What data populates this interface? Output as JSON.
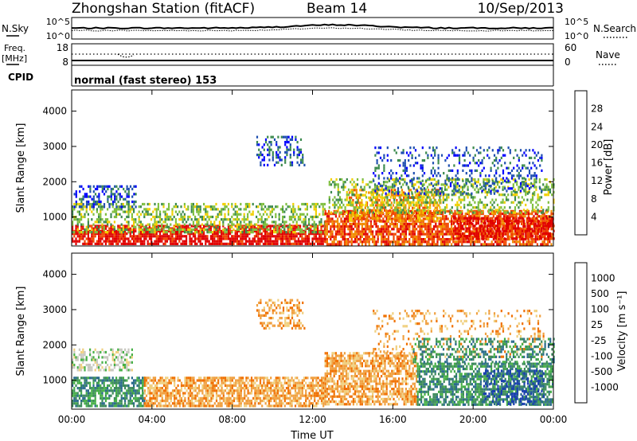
{
  "header": {
    "station": "Zhongshan Station (fitACF)",
    "beam": "Beam 14",
    "date": "10/Sep/2013"
  },
  "strips": {
    "nsky": {
      "label": "N.Sky",
      "ticks": [
        "10^5",
        "10^0"
      ]
    },
    "nsearch": {
      "label": "N.Search",
      "ticks": [
        "10^5",
        "10^0"
      ]
    },
    "freq": {
      "label_line1": "Freq.",
      "label_line2": "[MHz]",
      "ticks": [
        "18",
        "8"
      ]
    },
    "nave": {
      "label": "Nave",
      "ticks": [
        "60",
        "0"
      ]
    },
    "cpid": {
      "label": "CPID",
      "value": "normal (fast stereo) 153"
    }
  },
  "chart_data": [
    {
      "type": "heatmap",
      "quantity": "power",
      "ylabel": "Slant Range [km]",
      "xlabel": "",
      "x_ticks": [
        "00:00",
        "04:00",
        "08:00",
        "12:00",
        "16:00",
        "20:00",
        "00:00"
      ],
      "xlim_hours": [
        0,
        24
      ],
      "y_ticks": [
        1000,
        2000,
        3000,
        4000
      ],
      "ylim": [
        180,
        4600
      ],
      "colorbar": {
        "label": "Power [dB]",
        "ticks": [
          "4",
          "8",
          "12",
          "16",
          "20",
          "24",
          "28"
        ],
        "colors": [
          "#0000ff",
          "#1f4fb0",
          "#3c8a4e",
          "#7fbf3f",
          "#f0d000",
          "#f08c00",
          "#f04800",
          "#e00000"
        ]
      },
      "regions": [
        {
          "x0": 0.0,
          "x1": 12.6,
          "y0": 250,
          "y1": 780,
          "level": 7,
          "density": 0.78
        },
        {
          "x0": 0.0,
          "x1": 12.6,
          "y0": 600,
          "y1": 1400,
          "level": 3,
          "density": 0.45
        },
        {
          "x0": 0.1,
          "x1": 3.2,
          "y0": 1300,
          "y1": 1900,
          "level": 1,
          "density": 0.45
        },
        {
          "x0": 9.2,
          "x1": 11.6,
          "y0": 2500,
          "y1": 3300,
          "level": 1,
          "density": 0.35
        },
        {
          "x0": 12.6,
          "x1": 24.0,
          "y0": 250,
          "y1": 1200,
          "level": 6,
          "density": 0.75
        },
        {
          "x0": 13.8,
          "x1": 18.4,
          "y0": 900,
          "y1": 1800,
          "level": 5,
          "density": 0.55
        },
        {
          "x0": 12.8,
          "x1": 24.0,
          "y0": 1100,
          "y1": 2100,
          "level": 3,
          "density": 0.4
        },
        {
          "x0": 15.0,
          "x1": 23.5,
          "y0": 1700,
          "y1": 3000,
          "level": 1,
          "density": 0.22
        },
        {
          "x0": 19.0,
          "x1": 24.0,
          "y0": 400,
          "y1": 1000,
          "level": 7,
          "density": 0.6
        }
      ]
    },
    {
      "type": "heatmap",
      "quantity": "velocity",
      "ylabel": "Slant Range [km]",
      "xlabel": "Time UT",
      "x_ticks": [
        "00:00",
        "04:00",
        "08:00",
        "12:00",
        "16:00",
        "20:00",
        "00:00"
      ],
      "xlim_hours": [
        0,
        24
      ],
      "y_ticks": [
        1000,
        2000,
        3000,
        4000
      ],
      "ylim": [
        180,
        4600
      ],
      "colorbar": {
        "label": "Velocity [m s⁻¹]",
        "ticks": [
          "1000",
          "500",
          "100",
          "25",
          "-25",
          "-100",
          "-500",
          "-1000"
        ],
        "colors": [
          "#1a3fb0",
          "#2a6a8c",
          "#3c8a5c",
          "#46b046",
          "#c8c8c0",
          "#f0d080",
          "#f0a040",
          "#f07000",
          "#e00000"
        ]
      },
      "regions": [
        {
          "x0": 0.0,
          "x1": 3.6,
          "y0": 250,
          "y1": 1100,
          "level": 2,
          "density": 0.72
        },
        {
          "x0": 3.6,
          "x1": 12.6,
          "y0": 250,
          "y1": 1100,
          "level": 6,
          "density": 0.72
        },
        {
          "x0": 0.0,
          "x1": 3.0,
          "y0": 1300,
          "y1": 1900,
          "level": 4,
          "density": 0.45
        },
        {
          "x0": 9.2,
          "x1": 11.6,
          "y0": 2500,
          "y1": 3300,
          "level": 6,
          "density": 0.35
        },
        {
          "x0": 12.6,
          "x1": 17.2,
          "y0": 300,
          "y1": 1800,
          "level": 6,
          "density": 0.68
        },
        {
          "x0": 17.2,
          "x1": 24.0,
          "y0": 300,
          "y1": 1500,
          "level": 2,
          "density": 0.68
        },
        {
          "x0": 20.5,
          "x1": 23.5,
          "y0": 350,
          "y1": 1300,
          "level": 0,
          "density": 0.35
        },
        {
          "x0": 15.0,
          "x1": 23.5,
          "y0": 1700,
          "y1": 3000,
          "level": 6,
          "density": 0.18
        },
        {
          "x0": 17.0,
          "x1": 24.0,
          "y0": 1500,
          "y1": 2200,
          "level": 2,
          "density": 0.4
        }
      ]
    }
  ]
}
